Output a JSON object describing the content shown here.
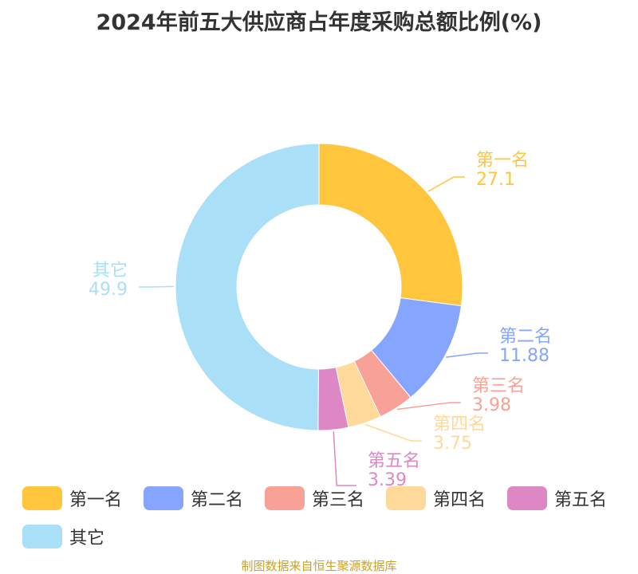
{
  "chart_data": {
    "type": "pie",
    "title": "2024年前五大供应商占年度采购总额比例(%)",
    "categories": [
      "第一名",
      "第二名",
      "第三名",
      "第四名",
      "第五名",
      "其它"
    ],
    "values": [
      27.1,
      11.88,
      3.98,
      3.75,
      3.39,
      49.9
    ],
    "value_labels": [
      "27.1",
      "11.88",
      "3.98",
      "3.75",
      "3.39",
      "49.9"
    ],
    "colors": [
      "#ffc53d",
      "#85a5ff",
      "#f8a196",
      "#ffd999",
      "#dd88c4",
      "#aadff8"
    ],
    "donut": true,
    "legend_position": "bottom"
  },
  "source": "制图数据来自恒生聚源数据库"
}
